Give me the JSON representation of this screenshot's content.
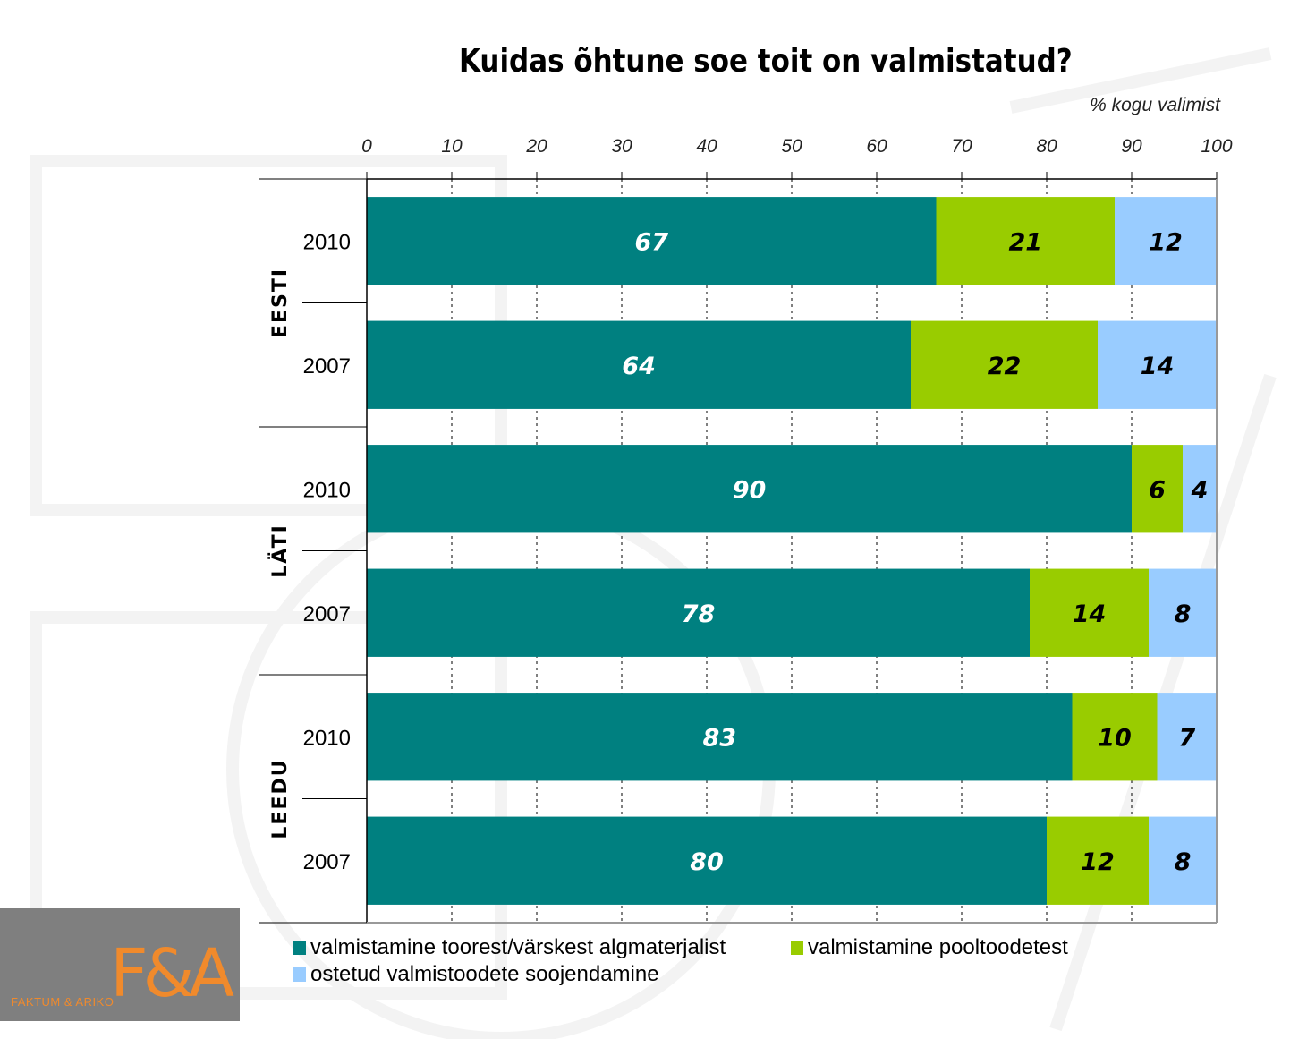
{
  "chart_data": {
    "type": "bar",
    "orientation": "horizontal",
    "stacked": true,
    "title": "Kuidas õhtune soe toit on valmistatud?",
    "unit_label": "% kogu valimist",
    "xlim": [
      0,
      100
    ],
    "x_ticks": [
      "0",
      "10",
      "20",
      "30",
      "40",
      "50",
      "60",
      "70",
      "80",
      "90",
      "100"
    ],
    "groups": [
      {
        "name": "EESTI",
        "rows": [
          "2010",
          "2007"
        ]
      },
      {
        "name": "LÄTI",
        "rows": [
          "2010",
          "2007"
        ]
      },
      {
        "name": "LEEDU",
        "rows": [
          "2010",
          "2007"
        ]
      }
    ],
    "series": [
      {
        "name": "valmistamine toorest/värskest algmaterjalist",
        "color": "#008080",
        "label_color": "#ffffff",
        "values": [
          67,
          64,
          90,
          78,
          83,
          80
        ]
      },
      {
        "name": "valmistamine pooltoodetest",
        "color": "#99cc00",
        "label_color": "#000000",
        "values": [
          21,
          22,
          6,
          14,
          10,
          12
        ]
      },
      {
        "name": "ostetud valmistoodete soojendamine",
        "color": "#99ccff",
        "label_color": "#000000",
        "values": [
          12,
          14,
          4,
          8,
          7,
          8
        ]
      }
    ],
    "grid": "vertical-dashed",
    "legend_position": "bottom"
  },
  "logo": {
    "text": "F&A",
    "subtitle": "FAKTUM & ARIKO"
  }
}
